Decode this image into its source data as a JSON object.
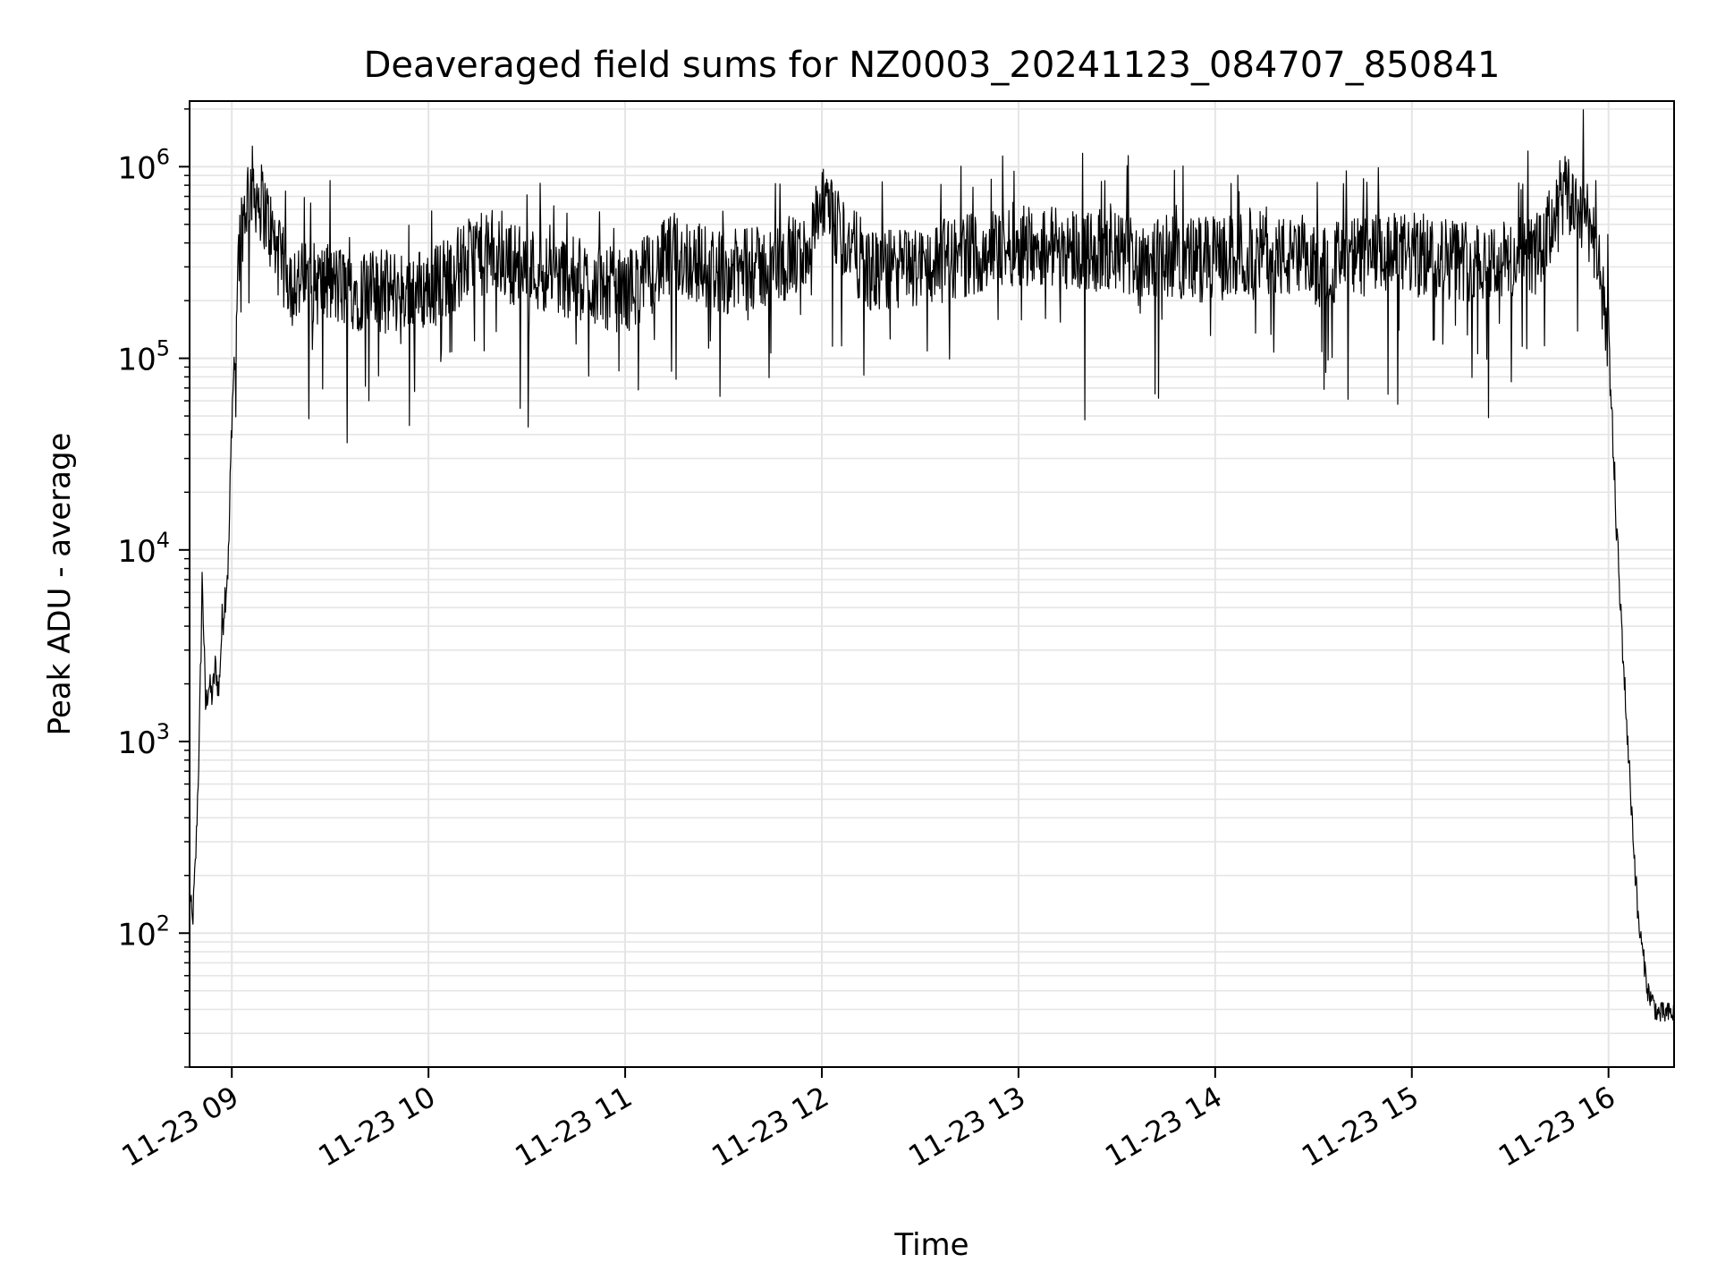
{
  "chart_data": {
    "type": "line",
    "title": "Deaveraged field sums for NZ0003_20241123_084707_850841",
    "xlabel": "Time",
    "ylabel": "Peak ADU - average",
    "yscale": "log",
    "ylim": [
      20,
      2200000
    ],
    "xlim": [
      "2024-11-23 08:47:07",
      "2024-11-23 16:20:00"
    ],
    "grid": true,
    "x_ticks": [
      {
        "time": "2024-11-23 09:00",
        "label": "11-23 09"
      },
      {
        "time": "2024-11-23 10:00",
        "label": "11-23 10"
      },
      {
        "time": "2024-11-23 11:00",
        "label": "11-23 11"
      },
      {
        "time": "2024-11-23 12:00",
        "label": "11-23 12"
      },
      {
        "time": "2024-11-23 13:00",
        "label": "11-23 13"
      },
      {
        "time": "2024-11-23 14:00",
        "label": "11-23 14"
      },
      {
        "time": "2024-11-23 15:00",
        "label": "11-23 15"
      },
      {
        "time": "2024-11-23 16:00",
        "label": "11-23 16"
      }
    ],
    "y_ticks": [
      {
        "value": 100,
        "base": "10",
        "exp": "2"
      },
      {
        "value": 1000,
        "base": "10",
        "exp": "3"
      },
      {
        "value": 10000,
        "base": "10",
        "exp": "4"
      },
      {
        "value": 100000,
        "base": "10",
        "exp": "5"
      },
      {
        "value": 1000000,
        "base": "10",
        "exp": "6"
      }
    ],
    "line_color": "#000000",
    "grid_color": "#e5e5e5",
    "series": [
      {
        "x": [
          "2024-11-23 08:47",
          "2024-11-23 08:48",
          "2024-11-23 08:49",
          "2024-11-23 08:50",
          "2024-11-23 08:51",
          "2024-11-23 08:52",
          "2024-11-23 08:53",
          "2024-11-23 08:54",
          "2024-11-23 08:55",
          "2024-11-23 08:56",
          "2024-11-23 08:57",
          "2024-11-23 08:58",
          "2024-11-23 08:59",
          "2024-11-23 09:00",
          "2024-11-23 09:01",
          "2024-11-23 09:02",
          "2024-11-23 09:03",
          "2024-11-23 09:04",
          "2024-11-23 09:05",
          "2024-11-23 09:06",
          "2024-11-23 09:08",
          "2024-11-23 09:10",
          "2024-11-23 09:12",
          "2024-11-23 09:15",
          "2024-11-23 09:20",
          "2024-11-23 09:30",
          "2024-11-23 09:45",
          "2024-11-23 10:00",
          "2024-11-23 10:15",
          "2024-11-23 10:30",
          "2024-11-23 10:45",
          "2024-11-23 11:00",
          "2024-11-23 11:15",
          "2024-11-23 11:30",
          "2024-11-23 11:45",
          "2024-11-23 11:55",
          "2024-11-23 12:00",
          "2024-11-23 12:15",
          "2024-11-23 12:30",
          "2024-11-23 12:45",
          "2024-11-23 13:00",
          "2024-11-23 13:15",
          "2024-11-23 13:30",
          "2024-11-23 13:45",
          "2024-11-23 14:00",
          "2024-11-23 14:15",
          "2024-11-23 14:30",
          "2024-11-23 14:45",
          "2024-11-23 15:00",
          "2024-11-23 15:15",
          "2024-11-23 15:30",
          "2024-11-23 15:40",
          "2024-11-23 15:45",
          "2024-11-23 15:50",
          "2024-11-23 15:55",
          "2024-11-23 16:00",
          "2024-11-23 16:03",
          "2024-11-23 16:06",
          "2024-11-23 16:09",
          "2024-11-23 16:12",
          "2024-11-23 16:15",
          "2024-11-23 16:20"
        ],
        "y": [
          180,
          110,
          250,
          900,
          7500,
          1500,
          2000,
          1700,
          2500,
          1800,
          4000,
          6000,
          9000,
          50000,
          120000,
          350000,
          500000,
          600000,
          750000,
          800000,
          700000,
          600000,
          450000,
          300000,
          250000,
          240000,
          220000,
          230000,
          350000,
          300000,
          260000,
          220000,
          350000,
          280000,
          300000,
          350000,
          600000,
          280000,
          300000,
          350000,
          400000,
          380000,
          350000,
          340000,
          330000,
          360000,
          300000,
          340000,
          350000,
          330000,
          320000,
          360000,
          700000,
          650000,
          500000,
          120000,
          8000,
          900,
          120,
          50,
          38,
          38
        ]
      }
    ]
  }
}
